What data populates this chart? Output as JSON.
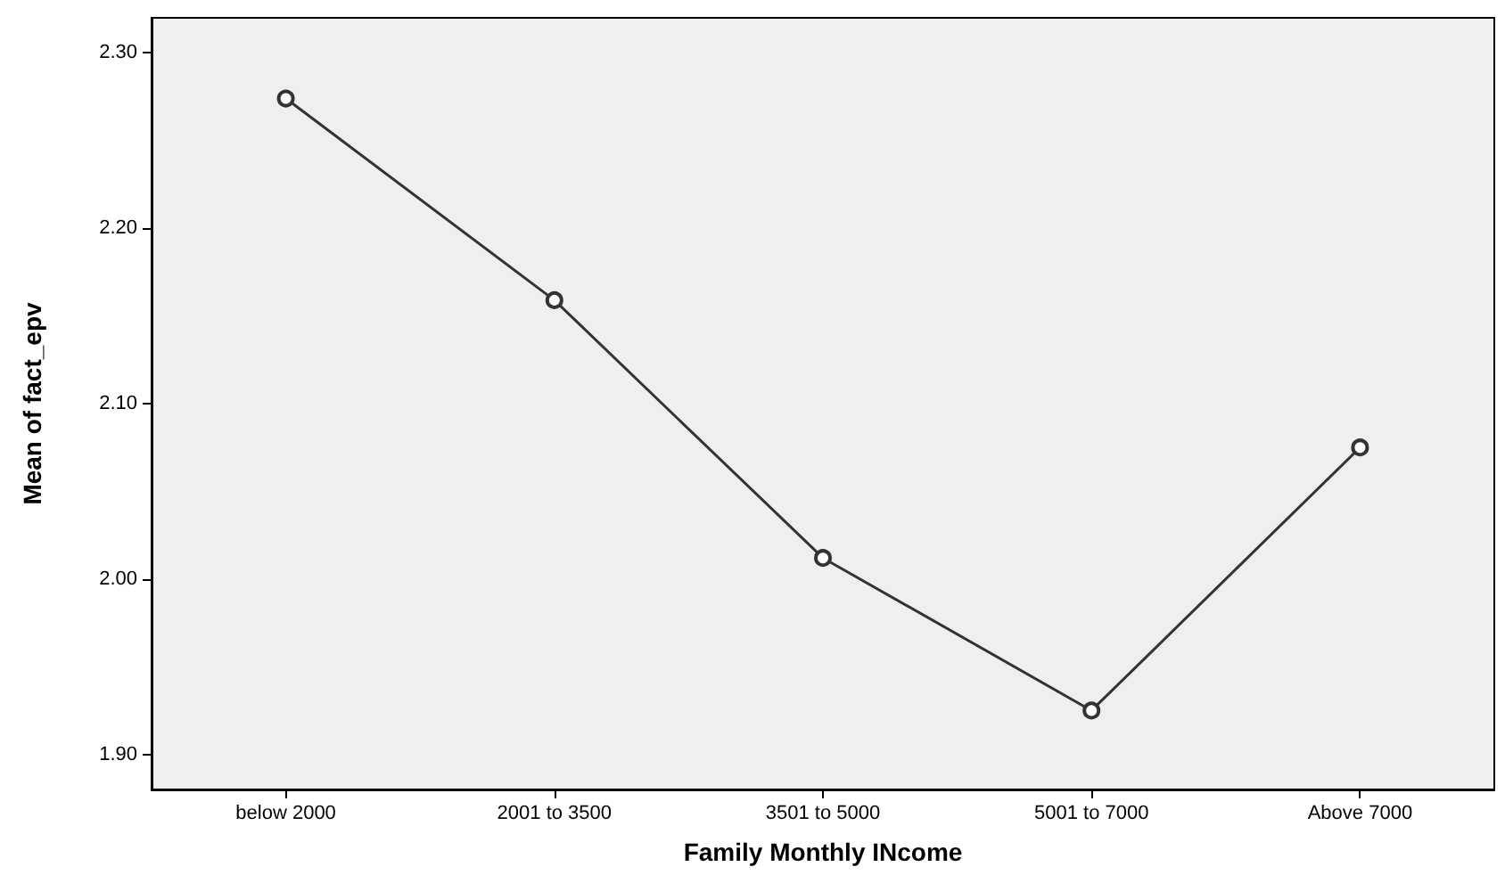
{
  "chart_data": {
    "type": "line",
    "xlabel": "Family Monthly INcome",
    "ylabel": "Mean of fact_epv",
    "categories": [
      "below 2000",
      "2001 to 3500",
      "3501 to 5000",
      "5001 to 7000",
      "Above 7000"
    ],
    "series": [
      {
        "color": "#333333",
        "values": [
          2.274,
          2.159,
          2.012,
          1.925,
          2.075
        ]
      }
    ],
    "ylim": [
      1.88,
      2.32
    ],
    "yticks": [
      {
        "value": 1.9,
        "label": "1.90"
      },
      {
        "value": 2.0,
        "label": "2.00"
      },
      {
        "value": 2.1,
        "label": "2.10"
      },
      {
        "value": 2.2,
        "label": "2.20"
      },
      {
        "value": 2.3,
        "label": "2.30"
      }
    ],
    "grid": false,
    "marker": "circle",
    "line_style": "solid"
  }
}
